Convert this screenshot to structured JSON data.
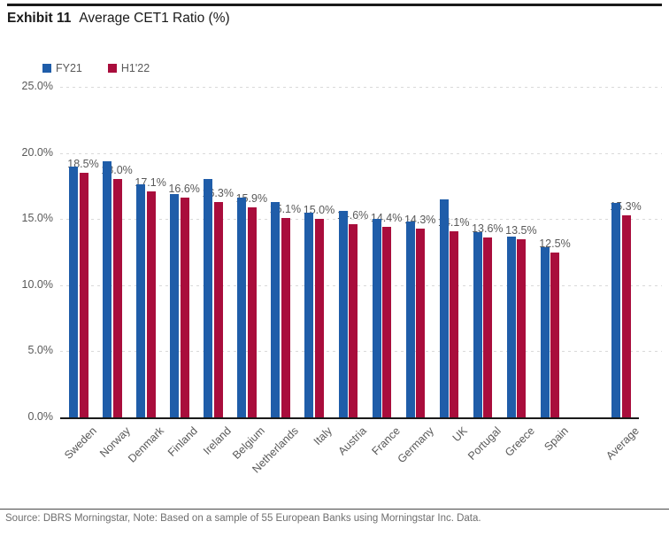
{
  "header": {
    "exhibit": "Exhibit 11",
    "title": "Average CET1 Ratio (%)"
  },
  "chart_data": {
    "type": "bar",
    "title": "Average CET1 Ratio (%)",
    "categories": [
      "Sweden",
      "Norway",
      "Denmark",
      "Finland",
      "Ireland",
      "Belgium",
      "Netherlands",
      "Italy",
      "Austria",
      "France",
      "Germany",
      "UK",
      "Portugal",
      "Greece",
      "Spain",
      "Average"
    ],
    "series": [
      {
        "name": "FY21",
        "color": "#1f5da9",
        "values": [
          19.0,
          19.4,
          17.6,
          16.9,
          18.0,
          16.6,
          16.3,
          15.5,
          15.6,
          15.0,
          14.8,
          16.5,
          14.0,
          13.7,
          12.9,
          16.2
        ]
      },
      {
        "name": "H1'22",
        "color": "#a90d3c",
        "values": [
          18.5,
          18.0,
          17.1,
          16.6,
          16.3,
          15.9,
          15.1,
          15.0,
          14.6,
          14.4,
          14.3,
          14.1,
          13.6,
          13.5,
          12.5,
          15.3
        ]
      }
    ],
    "data_labels": [
      "18.5%",
      "18.0%",
      "17.1%",
      "16.6%",
      "16.3%",
      "15.9%",
      "15.1%",
      "15.0%",
      "14.6%",
      "14.4%",
      "14.3%",
      "14.1%",
      "13.6%",
      "13.5%",
      "12.5%",
      "15.3%"
    ],
    "data_labels_series": "H1'22",
    "ylim": [
      0,
      25
    ],
    "yticks": [
      {
        "value": 25,
        "label": "25.0%"
      },
      {
        "value": 20,
        "label": "20.0%"
      },
      {
        "value": 15,
        "label": "15.0%"
      },
      {
        "value": 10,
        "label": "10.0%"
      },
      {
        "value": 5,
        "label": "5.0%"
      },
      {
        "value": 0,
        "label": "0.0%"
      }
    ],
    "grid": "horizontal-dashed",
    "legend_position": "top-left"
  },
  "legend": {
    "items": [
      {
        "label": "FY21",
        "color": "#1f5da9"
      },
      {
        "label": "H1'22",
        "color": "#a90d3c"
      }
    ]
  },
  "footer": {
    "source": "Source: DBRS Morningstar, Note: Based on a sample of 55 European Banks using Morningstar Inc. Data."
  }
}
